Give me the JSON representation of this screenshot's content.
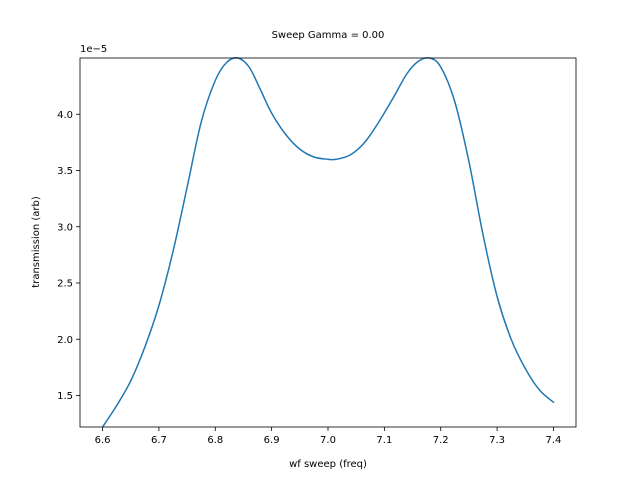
{
  "chart_data": {
    "type": "line",
    "title": "Sweep Gamma = 0.00",
    "xlabel": "wf sweep (freq)",
    "ylabel": "transmission (arb)",
    "y_offset_label": "1e−5",
    "xlim": [
      6.56,
      7.44
    ],
    "ylim": [
      1.22e-05,
      4.5e-05
    ],
    "x_ticks": [
      6.6,
      6.7,
      6.8,
      6.9,
      7.0,
      7.1,
      7.2,
      7.3,
      7.4
    ],
    "x_tick_labels": [
      "6.6",
      "6.7",
      "6.8",
      "6.9",
      "7.0",
      "7.1",
      "7.2",
      "7.3",
      "7.4"
    ],
    "y_ticks": [
      1.5e-05,
      2e-05,
      2.5e-05,
      3e-05,
      3.5e-05,
      4e-05
    ],
    "y_tick_labels": [
      "1.5",
      "2.0",
      "2.5",
      "3.0",
      "3.5",
      "4.0"
    ],
    "grid": false,
    "series": [
      {
        "color": "#1f77b4",
        "x": [
          6.6,
          6.625,
          6.65,
          6.675,
          6.7,
          6.725,
          6.75,
          6.775,
          6.8,
          6.82,
          6.84,
          6.86,
          6.88,
          6.9,
          6.925,
          6.95,
          6.975,
          7.0,
          7.015,
          7.04,
          7.065,
          7.09,
          7.115,
          7.14,
          7.16,
          7.18,
          7.2,
          7.225,
          7.25,
          7.275,
          7.3,
          7.325,
          7.35,
          7.375,
          7.4
        ],
        "y": [
          1.22e-05,
          1.41e-05,
          1.63e-05,
          1.93e-05,
          2.3e-05,
          2.78e-05,
          3.35e-05,
          3.93e-05,
          4.3e-05,
          4.46e-05,
          4.5e-05,
          4.42e-05,
          4.22e-05,
          4.01e-05,
          3.82e-05,
          3.69e-05,
          3.62e-05,
          3.6e-05,
          3.6e-05,
          3.64e-05,
          3.75e-05,
          3.93e-05,
          4.14e-05,
          4.36e-05,
          4.47e-05,
          4.5e-05,
          4.42e-05,
          4.11e-05,
          3.58e-05,
          2.93e-05,
          2.38e-05,
          2e-05,
          1.74e-05,
          1.55e-05,
          1.44e-05
        ]
      }
    ]
  }
}
